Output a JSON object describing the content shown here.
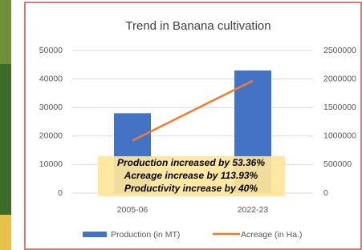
{
  "chart_data": {
    "type": "bar",
    "title": "Trend in Banana cultivation",
    "categories": [
      "2005-06",
      "2022-23"
    ],
    "series": [
      {
        "name": "Production (in MT)",
        "color": "#4472c4",
        "type": "bar",
        "values": [
          28000,
          43000
        ]
      },
      {
        "name": "Acreage (in Ha.)",
        "color": "#ed7d31",
        "type": "line",
        "axis": "y2",
        "values": [
          920000,
          1970000
        ]
      }
    ],
    "ylim": [
      0,
      50000
    ],
    "yticks": [
      0,
      10000,
      20000,
      30000,
      40000,
      50000
    ],
    "y2lim": [
      0,
      2500000
    ],
    "y2ticks": [
      0,
      500000,
      1000000,
      1500000,
      2000000,
      2500000
    ],
    "grid": true,
    "legend": "bottom",
    "annotations": [
      "Production increased by 53.36%",
      "Acreage increase by 113.93%",
      "Productivity increase by 40%"
    ]
  }
}
